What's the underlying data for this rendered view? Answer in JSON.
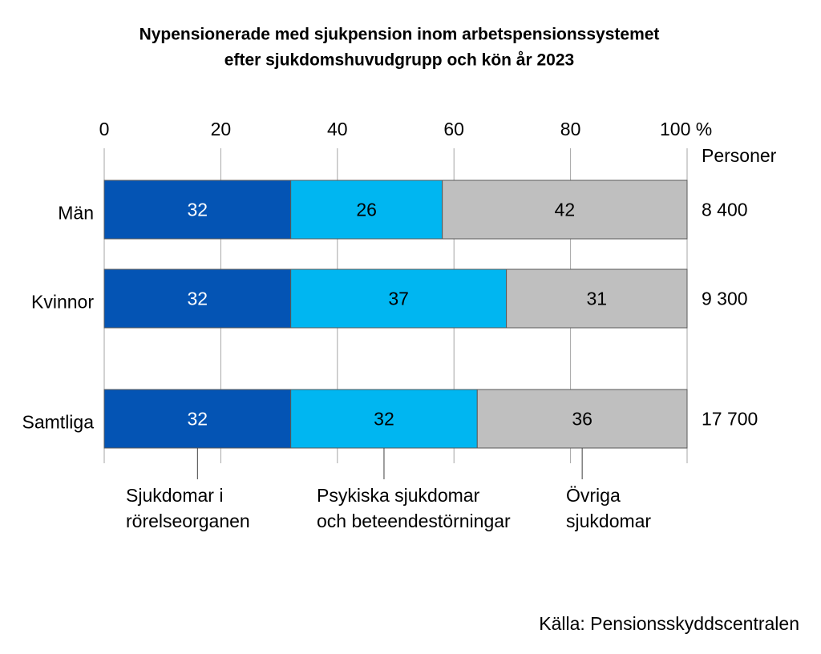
{
  "chart_data": {
    "type": "stacked-bar-horizontal",
    "title": [
      "Nypensionerade med sjukpension inom arbetspensionssystemet",
      "efter sjukdomshuvudgrupp och kön år 2023"
    ],
    "categories": [
      "Män",
      "Kvinnor",
      "Samtliga"
    ],
    "series": [
      {
        "name": "Sjukdomar i\nrörelseorganen",
        "color": "#0454b4",
        "values": [
          32,
          32,
          32
        ]
      },
      {
        "name": "Psykiska sjukdomar\noch beteendestörningar",
        "color": "#00b6f1",
        "values": [
          26,
          37,
          32
        ]
      },
      {
        "name": "Övriga\nsjukdomar",
        "color": "#bfbfbf",
        "values": [
          42,
          31,
          36
        ]
      }
    ],
    "xlim": [
      0,
      100
    ],
    "xticks": [
      0,
      20,
      40,
      60,
      80,
      {
        "value": 100,
        "label": "100 %"
      }
    ],
    "grid": true,
    "totals": {
      "label": "Personer",
      "values": [
        8400,
        9300,
        17700
      ],
      "value_labels": [
        "8 400",
        "9 300",
        "17 700"
      ]
    },
    "source": "Källa: Pensionsskyddscentralen"
  }
}
